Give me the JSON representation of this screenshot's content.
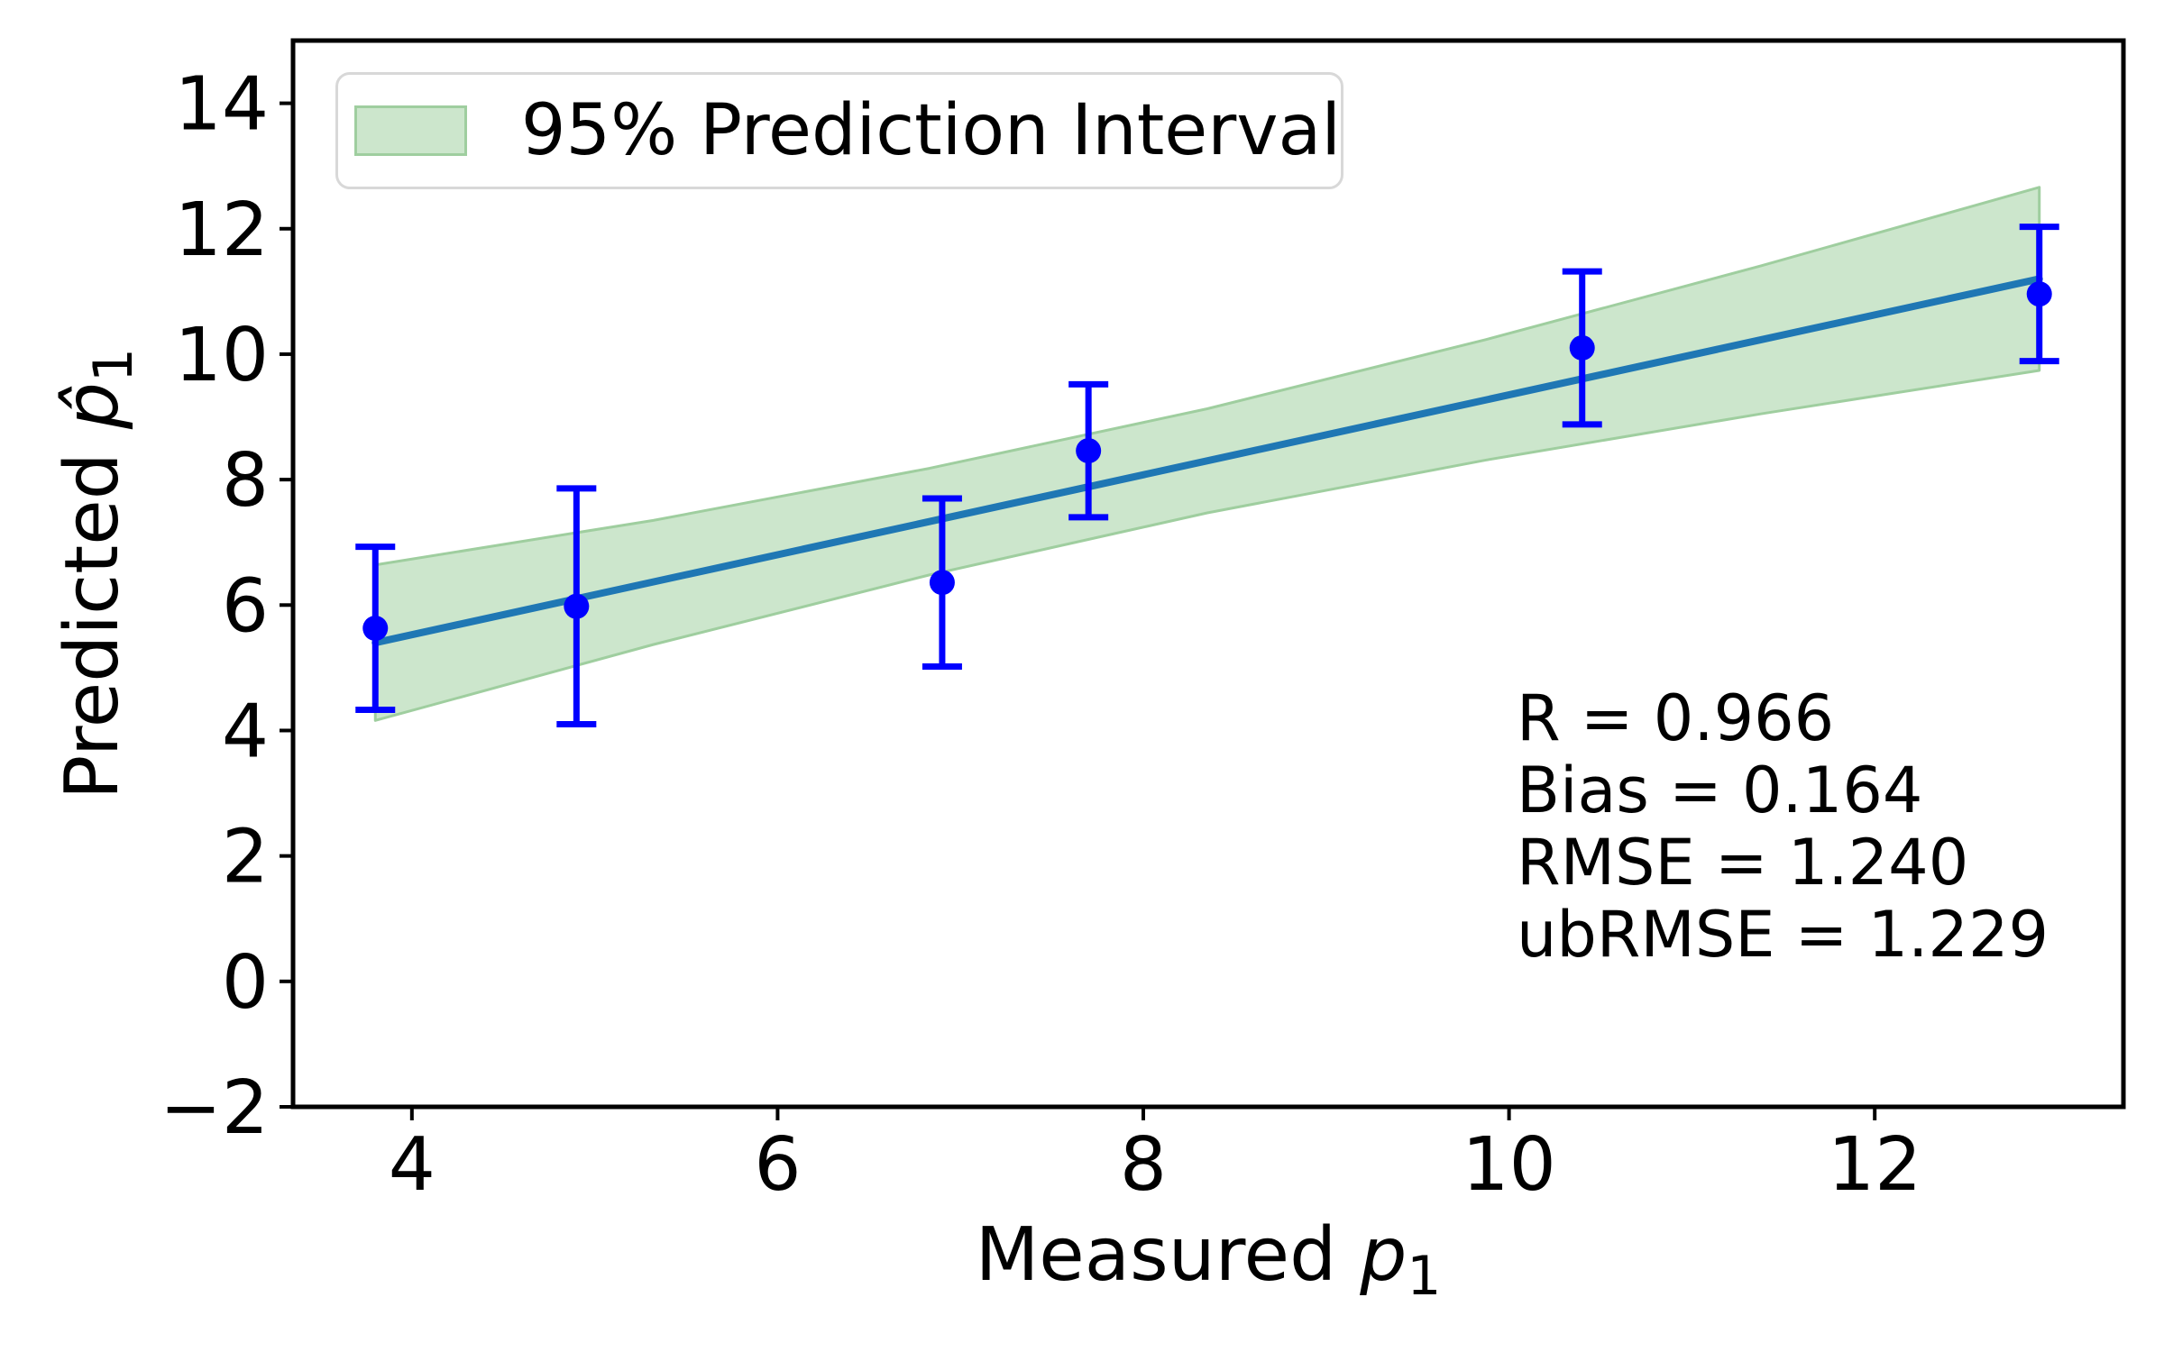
{
  "figure": {
    "background": "#ffffff"
  },
  "chart_data": {
    "type": "scatter",
    "title": "",
    "xlabel": {
      "prefix": "Measured ",
      "variable": "p",
      "subscript": "1"
    },
    "ylabel": {
      "prefix": "Predicted ",
      "variable": "p̂",
      "subscript": "1"
    },
    "xlim": [
      3.35,
      13.36
    ],
    "ylim": [
      -2,
      15
    ],
    "grid": false,
    "xticks": {
      "values": [
        4,
        6,
        8,
        10,
        12
      ],
      "labels": [
        "4",
        "6",
        "8",
        "10",
        "12"
      ]
    },
    "yticks": {
      "values": [
        14,
        12,
        10,
        8,
        6,
        4,
        2,
        0,
        -2
      ],
      "labels": [
        "14",
        "12",
        "10",
        "8",
        "6",
        "4",
        "2",
        "0",
        "−2"
      ]
    },
    "series": {
      "scatter": {
        "name": "measured-vs-predicted",
        "marker_color": "#0000ff",
        "x": [
          3.8,
          4.9,
          6.9,
          7.7,
          10.4,
          12.9
        ],
        "y": [
          5.63,
          5.98,
          6.36,
          8.46,
          10.1,
          10.96
        ],
        "yerr": [
          1.3,
          1.88,
          1.34,
          1.06,
          1.22,
          1.07
        ]
      },
      "fit_line": {
        "name": "linear-fit",
        "color": "#1f77b4",
        "x": [
          3.8,
          12.9
        ],
        "y": [
          5.4,
          11.2
        ]
      },
      "prediction_band": {
        "name": "95% Prediction Interval",
        "fill_color": "#cce6cc",
        "edge_color": "#9fce9f",
        "x": [
          3.8,
          5.32,
          6.83,
          8.35,
          9.87,
          11.38,
          12.9
        ],
        "upper": [
          6.64,
          7.35,
          8.18,
          9.13,
          10.23,
          11.41,
          12.66
        ],
        "lower": [
          4.16,
          5.37,
          6.48,
          7.47,
          8.31,
          9.05,
          9.74
        ]
      }
    },
    "legend": {
      "label": "95% Prediction Interval",
      "position": "upper left"
    },
    "annotations": [
      "R = 0.966",
      "Bias = 0.164",
      "RMSE = 1.240",
      "ubRMSE = 1.229"
    ]
  }
}
